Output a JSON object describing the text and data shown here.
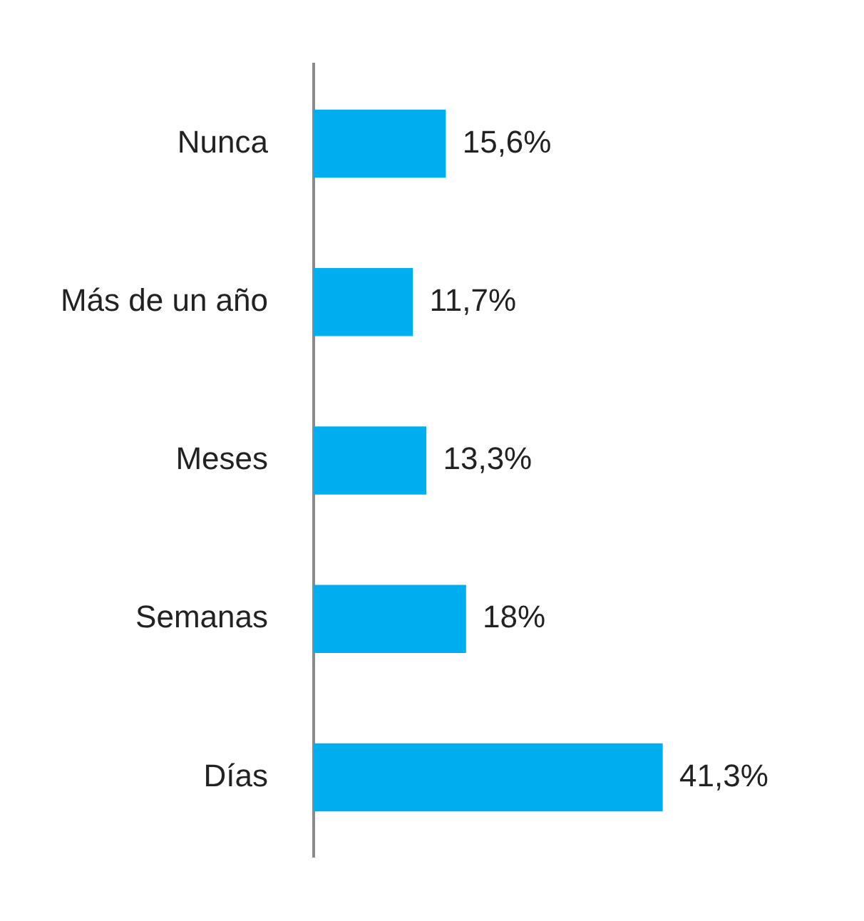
{
  "chart_data": {
    "type": "bar",
    "orientation": "horizontal",
    "categories": [
      "Nunca",
      "Más de un año",
      "Meses",
      "Semanas",
      "Días"
    ],
    "values": [
      15.6,
      11.7,
      13.3,
      18,
      41.3
    ],
    "value_labels": [
      "15,6%",
      "11,7%",
      "13,3%",
      "18%",
      "41,3%"
    ],
    "color": "#00aeef",
    "tick_labels": "y",
    "legend": false
  }
}
